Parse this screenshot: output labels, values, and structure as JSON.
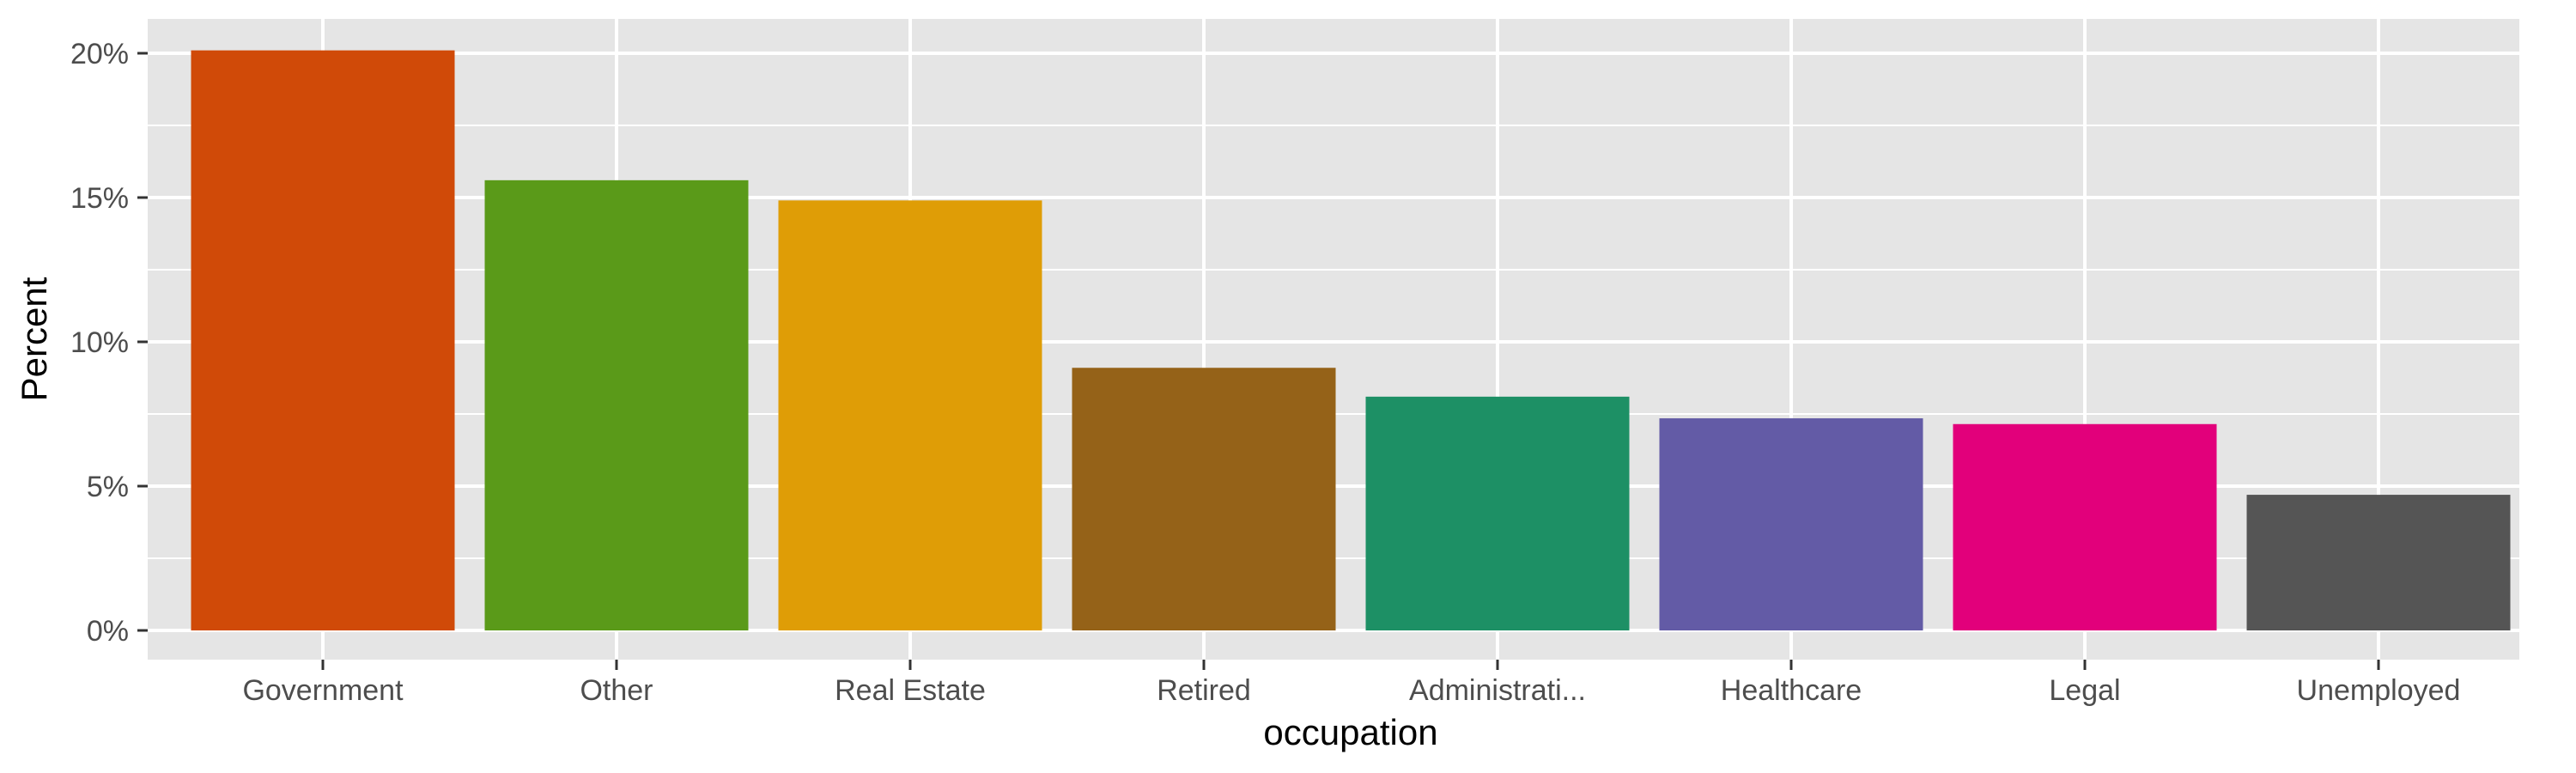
{
  "chart_data": {
    "type": "bar",
    "xlabel": "occupation",
    "ylabel": "Percent",
    "categories": [
      "Government",
      "Other",
      "Real Estate",
      "Retired",
      "Administrati...",
      "Healthcare",
      "Legal",
      "Unemployed"
    ],
    "values": [
      20.1,
      15.6,
      14.9,
      9.1,
      8.1,
      7.35,
      7.15,
      4.7
    ],
    "colors": [
      "#d04a08",
      "#5a9a19",
      "#df9d06",
      "#956218",
      "#1d9065",
      "#635ba6",
      "#e2007b",
      "#555555"
    ],
    "ylim": [
      0,
      21.3
    ],
    "yticks": [
      0,
      5,
      10,
      15,
      20
    ],
    "ytick_labels": [
      "0%",
      "5%",
      "10%",
      "15%",
      "20%"
    ],
    "grid": true,
    "panel_background": "#e5e5e5",
    "legend": "none"
  }
}
